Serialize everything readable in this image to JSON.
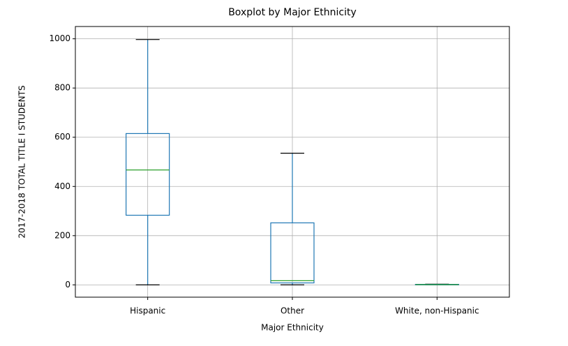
{
  "chart_data": {
    "type": "box",
    "title": "Boxplot by Major Ethnicity",
    "xlabel": "Major Ethnicity",
    "ylabel": "2017-2018 TOTAL TITLE I STUDENTS",
    "categories": [
      "Hispanic",
      "Other",
      "White, non-Hispanic"
    ],
    "boxes": [
      {
        "min": 0,
        "q1": 283,
        "median": 467,
        "q3": 615,
        "max": 997
      },
      {
        "min": 0,
        "q1": 8,
        "median": 17,
        "q3": 252,
        "max": 535
      },
      {
        "min": 0,
        "q1": 0,
        "median": 1,
        "q3": 2,
        "max": 3
      }
    ],
    "box_color": "#1f77b4",
    "median_color": "#2ca02c",
    "cap_color": "#000000",
    "ylim": [
      -50,
      1050
    ],
    "yticks": [
      0,
      200,
      400,
      600,
      800,
      1000
    ],
    "grid": true
  }
}
